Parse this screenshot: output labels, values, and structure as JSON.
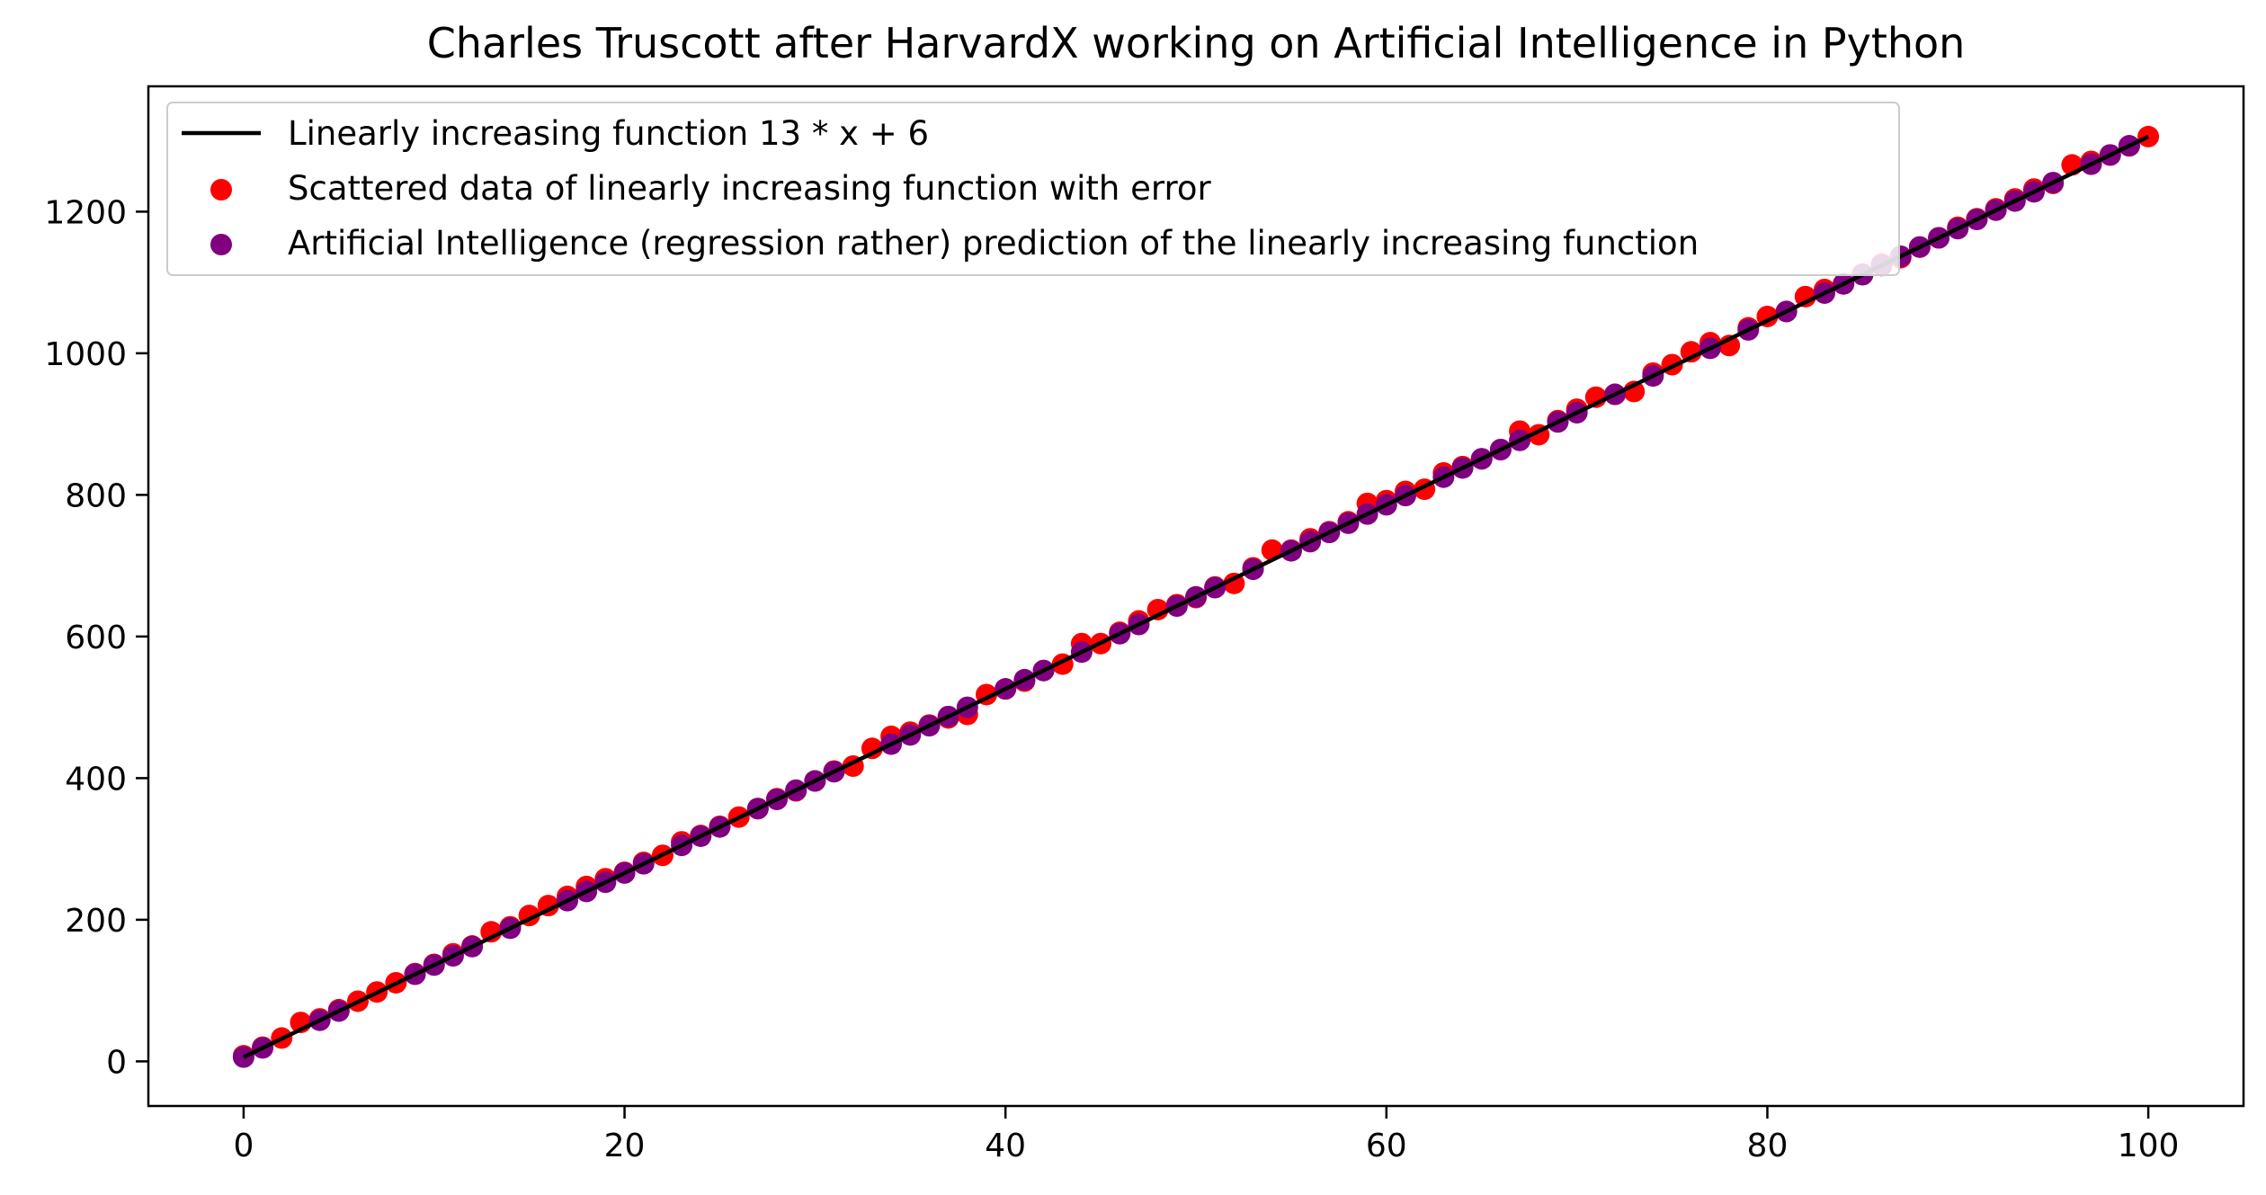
{
  "chart_data": {
    "type": "scatter",
    "title": "Charles Truscott after HarvardX working on Artificial Intelligence in Python",
    "xlabel": "",
    "ylabel": "",
    "xlim": [
      -5.0,
      105.0
    ],
    "ylim": [
      -63,
      1377
    ],
    "x_ticks": [
      0,
      20,
      40,
      60,
      80,
      100
    ],
    "y_ticks": [
      0,
      200,
      400,
      600,
      800,
      1000,
      1200
    ],
    "grid": false,
    "legend_position": "top-left",
    "colors": {
      "line": "#000000",
      "scatter": "#ff0000",
      "prediction": "#800080"
    },
    "series": [
      {
        "name": "Linearly increasing function 13 * x + 6",
        "kind": "line",
        "color": "#000000",
        "slope": 13,
        "intercept": 6,
        "x_range": [
          0,
          100
        ]
      },
      {
        "name": "Scattered data of linearly increasing function with error",
        "kind": "scatter",
        "color": "#ff0000",
        "x": [
          0,
          1,
          2,
          3,
          4,
          5,
          6,
          7,
          8,
          9,
          10,
          11,
          12,
          13,
          14,
          15,
          16,
          17,
          18,
          19,
          20,
          21,
          22,
          23,
          24,
          25,
          26,
          27,
          28,
          29,
          30,
          31,
          32,
          33,
          34,
          35,
          36,
          37,
          38,
          39,
          40,
          41,
          42,
          43,
          44,
          45,
          46,
          47,
          48,
          49,
          50,
          51,
          52,
          53,
          54,
          55,
          56,
          57,
          58,
          59,
          60,
          61,
          62,
          63,
          64,
          65,
          66,
          67,
          68,
          69,
          70,
          71,
          72,
          73,
          74,
          75,
          76,
          77,
          78,
          79,
          80,
          81,
          82,
          83,
          84,
          85,
          86,
          87,
          88,
          89,
          90,
          91,
          92,
          93,
          94,
          95,
          96,
          97,
          98,
          99,
          100
        ],
        "y": [
          8,
          20,
          33,
          55,
          60,
          73,
          85,
          98,
          111,
          124,
          137,
          152,
          163,
          183,
          190,
          206,
          220,
          233,
          247,
          258,
          267,
          281,
          291,
          310,
          319,
          332,
          345,
          357,
          371,
          382,
          396,
          410,
          417,
          442,
          459,
          465,
          475,
          485,
          490,
          518,
          526,
          537,
          552,
          561,
          590,
          590,
          606,
          622,
          638,
          645,
          655,
          670,
          675,
          697,
          722,
          722,
          738,
          748,
          762,
          788,
          792,
          805,
          808,
          831,
          840,
          851,
          864,
          890,
          885,
          905,
          921,
          938,
          942,
          946,
          972,
          984,
          1002,
          1015,
          1011,
          1036,
          1052,
          1059,
          1080,
          1090,
          1098,
          1112,
          1126,
          1135,
          1150,
          1163,
          1178,
          1190,
          1204,
          1218,
          1232,
          1240,
          1266,
          1271,
          1280,
          1293,
          1306
        ]
      },
      {
        "name": "Artificial Intelligence (regression rather) prediction of the linearly increasing function",
        "kind": "scatter",
        "color": "#800080",
        "x": [
          0,
          1,
          4,
          5,
          9,
          10,
          11,
          12,
          14,
          17,
          18,
          19,
          20,
          21,
          23,
          24,
          25,
          27,
          28,
          29,
          30,
          31,
          34,
          35,
          36,
          37,
          38,
          40,
          41,
          42,
          44,
          46,
          47,
          49,
          50,
          51,
          53,
          55,
          56,
          57,
          58,
          59,
          60,
          61,
          63,
          64,
          65,
          66,
          67,
          69,
          70,
          72,
          74,
          77,
          79,
          81,
          83,
          84,
          85,
          86,
          87,
          88,
          89,
          90,
          91,
          92,
          93,
          94,
          95,
          97,
          98,
          99
        ],
        "y": [
          6,
          19,
          58,
          71,
          123,
          136,
          149,
          162,
          188,
          227,
          240,
          253,
          266,
          279,
          305,
          318,
          331,
          357,
          370,
          383,
          396,
          409,
          448,
          461,
          474,
          487,
          500,
          526,
          539,
          552,
          578,
          604,
          617,
          643,
          656,
          669,
          695,
          721,
          734,
          747,
          760,
          773,
          786,
          799,
          825,
          838,
          851,
          864,
          877,
          903,
          916,
          942,
          968,
          1007,
          1033,
          1059,
          1085,
          1098,
          1111,
          1124,
          1137,
          1150,
          1163,
          1176,
          1189,
          1202,
          1215,
          1228,
          1241,
          1267,
          1280,
          1293
        ]
      }
    ]
  }
}
